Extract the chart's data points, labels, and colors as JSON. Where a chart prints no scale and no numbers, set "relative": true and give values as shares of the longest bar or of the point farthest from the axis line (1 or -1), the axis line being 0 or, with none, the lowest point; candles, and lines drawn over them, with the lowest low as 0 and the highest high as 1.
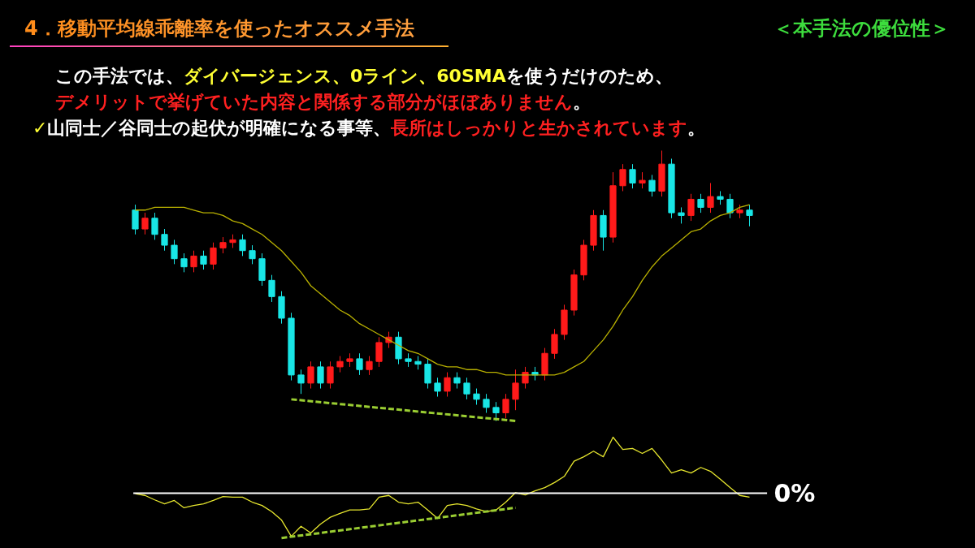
{
  "chart_data": [
    {
      "type": "candlestick",
      "relative": true,
      "title": "4．移動平均線乖離率を使ったオススメ手法",
      "annotations": [
        "＜本手法の優位性＞",
        "この手法では、",
        "ダイバージェンス、0ライン、60SMA",
        "を使うだけのため、",
        "デメリットで挙げていた内容と関係する部分がほぼありません",
        "。",
        "✓",
        "山同士／谷同士の起伏が明確になる事等、",
        "長所はしっかりと生かされています",
        "。"
      ],
      "categories": [
        null,
        null,
        null,
        null,
        null,
        null,
        null,
        null,
        null,
        null,
        null,
        null,
        null,
        null,
        null,
        null,
        null,
        null,
        null,
        null,
        null,
        null,
        null,
        null,
        null,
        null,
        null,
        null,
        null,
        null,
        null,
        null,
        null,
        null,
        null,
        null,
        null,
        null,
        null,
        null,
        null,
        null,
        null,
        null,
        null,
        null,
        null,
        null,
        null,
        null,
        null,
        null,
        null,
        null,
        null,
        null,
        null,
        null,
        null,
        null,
        null,
        null,
        null,
        null
      ],
      "ohlc": [
        [
          0.78,
          0.8,
          0.69,
          0.71
        ],
        [
          0.71,
          0.77,
          0.69,
          0.75
        ],
        [
          0.75,
          0.77,
          0.67,
          0.69
        ],
        [
          0.69,
          0.71,
          0.63,
          0.65
        ],
        [
          0.65,
          0.67,
          0.58,
          0.6
        ],
        [
          0.6,
          0.62,
          0.55,
          0.57
        ],
        [
          0.57,
          0.63,
          0.55,
          0.61
        ],
        [
          0.61,
          0.63,
          0.56,
          0.58
        ],
        [
          0.58,
          0.66,
          0.56,
          0.64
        ],
        [
          0.64,
          0.68,
          0.62,
          0.66
        ],
        [
          0.66,
          0.69,
          0.64,
          0.67
        ],
        [
          0.67,
          0.69,
          0.61,
          0.63
        ],
        [
          0.63,
          0.65,
          0.58,
          0.6
        ],
        [
          0.6,
          0.62,
          0.5,
          0.52
        ],
        [
          0.52,
          0.54,
          0.44,
          0.46
        ],
        [
          0.46,
          0.48,
          0.36,
          0.38
        ],
        [
          0.38,
          0.4,
          0.15,
          0.17
        ],
        [
          0.17,
          0.19,
          0.1,
          0.14
        ],
        [
          0.14,
          0.22,
          0.12,
          0.2
        ],
        [
          0.2,
          0.22,
          0.12,
          0.14
        ],
        [
          0.14,
          0.22,
          0.12,
          0.2
        ],
        [
          0.2,
          0.24,
          0.18,
          0.22
        ],
        [
          0.22,
          0.25,
          0.2,
          0.23
        ],
        [
          0.23,
          0.25,
          0.17,
          0.19
        ],
        [
          0.19,
          0.24,
          0.17,
          0.22
        ],
        [
          0.22,
          0.31,
          0.2,
          0.29
        ],
        [
          0.29,
          0.33,
          0.27,
          0.31
        ],
        [
          0.31,
          0.33,
          0.21,
          0.23
        ],
        [
          0.23,
          0.25,
          0.2,
          0.22
        ],
        [
          0.22,
          0.24,
          0.19,
          0.21
        ],
        [
          0.21,
          0.23,
          0.12,
          0.14
        ],
        [
          0.14,
          0.16,
          0.09,
          0.11
        ],
        [
          0.11,
          0.18,
          0.09,
          0.16
        ],
        [
          0.16,
          0.18,
          0.12,
          0.14
        ],
        [
          0.14,
          0.16,
          0.08,
          0.1
        ],
        [
          0.1,
          0.12,
          0.06,
          0.08
        ],
        [
          0.08,
          0.1,
          0.03,
          0.05
        ],
        [
          0.05,
          0.07,
          0.0,
          0.03
        ],
        [
          0.03,
          0.1,
          0.01,
          0.08
        ],
        [
          0.08,
          0.19,
          0.04,
          0.14
        ],
        [
          0.14,
          0.2,
          0.12,
          0.18
        ],
        [
          0.18,
          0.2,
          0.15,
          0.17
        ],
        [
          0.17,
          0.27,
          0.15,
          0.25
        ],
        [
          0.25,
          0.34,
          0.23,
          0.32
        ],
        [
          0.32,
          0.43,
          0.3,
          0.41
        ],
        [
          0.41,
          0.56,
          0.39,
          0.54
        ],
        [
          0.54,
          0.67,
          0.52,
          0.65
        ],
        [
          0.65,
          0.78,
          0.63,
          0.76
        ],
        [
          0.76,
          0.78,
          0.63,
          0.68
        ],
        [
          0.68,
          0.92,
          0.66,
          0.87
        ],
        [
          0.87,
          0.95,
          0.85,
          0.93
        ],
        [
          0.93,
          0.95,
          0.86,
          0.88
        ],
        [
          0.88,
          0.92,
          0.86,
          0.89
        ],
        [
          0.89,
          0.91,
          0.83,
          0.85
        ],
        [
          0.85,
          1.0,
          0.83,
          0.95
        ],
        [
          0.95,
          0.97,
          0.75,
          0.77
        ],
        [
          0.77,
          0.79,
          0.73,
          0.76
        ],
        [
          0.76,
          0.84,
          0.74,
          0.82
        ],
        [
          0.82,
          0.84,
          0.77,
          0.79
        ],
        [
          0.79,
          0.88,
          0.77,
          0.83
        ],
        [
          0.83,
          0.85,
          0.8,
          0.82
        ],
        [
          0.82,
          0.84,
          0.75,
          0.77
        ],
        [
          0.77,
          0.8,
          0.75,
          0.78
        ],
        [
          0.78,
          0.8,
          0.72,
          0.76
        ]
      ],
      "series": [
        {
          "type": "line",
          "color": "#b8b000",
          "values": [
            0.78,
            0.78,
            0.79,
            0.79,
            0.79,
            0.79,
            0.78,
            0.77,
            0.77,
            0.76,
            0.74,
            0.73,
            0.71,
            0.69,
            0.66,
            0.63,
            0.59,
            0.55,
            0.5,
            0.47,
            0.44,
            0.41,
            0.39,
            0.36,
            0.34,
            0.32,
            0.3,
            0.28,
            0.26,
            0.25,
            0.23,
            0.21,
            0.2,
            0.2,
            0.19,
            0.19,
            0.18,
            0.18,
            0.17,
            0.17,
            0.17,
            0.17,
            0.17,
            0.17,
            0.18,
            0.2,
            0.22,
            0.26,
            0.3,
            0.35,
            0.41,
            0.46,
            0.52,
            0.57,
            0.61,
            0.64,
            0.67,
            0.7,
            0.71,
            0.74,
            0.76,
            0.77,
            0.79,
            0.8
          ]
        },
        {
          "type": "line",
          "color": "#9acd32",
          "line_style": "dashed",
          "values": [
            null,
            null,
            null,
            null,
            null,
            null,
            null,
            null,
            null,
            null,
            null,
            null,
            null,
            null,
            null,
            null,
            0.08,
            null,
            null,
            null,
            null,
            null,
            null,
            null,
            null,
            null,
            null,
            null,
            null,
            null,
            null,
            null,
            null,
            null,
            null,
            null,
            null,
            null,
            null,
            0.0,
            null,
            null,
            null,
            null,
            null,
            null,
            null,
            null,
            null,
            null,
            null,
            null,
            null,
            null,
            null,
            null,
            null,
            null,
            null,
            null,
            null,
            null,
            null,
            null
          ]
        }
      ]
    },
    {
      "type": "line",
      "relative": true,
      "categories": [
        null,
        null,
        null,
        null,
        null,
        null,
        null,
        null,
        null,
        null,
        null,
        null,
        null,
        null,
        null,
        null,
        null,
        null,
        null,
        null,
        null,
        null,
        null,
        null,
        null,
        null,
        null,
        null,
        null,
        null,
        null,
        null,
        null,
        null,
        null,
        null,
        null,
        null,
        null,
        null,
        null,
        null,
        null,
        null,
        null,
        null,
        null,
        null,
        null,
        null,
        null,
        null,
        null,
        null,
        null,
        null,
        null,
        null,
        null,
        null,
        null,
        null,
        null,
        null
      ],
      "series": [
        {
          "color": "#e6e62e",
          "values": [
            -0.01,
            -0.04,
            -0.12,
            -0.19,
            -0.13,
            -0.26,
            -0.22,
            -0.19,
            -0.13,
            -0.06,
            -0.07,
            -0.07,
            -0.16,
            -0.22,
            -0.33,
            -0.48,
            -0.77,
            -0.59,
            -0.71,
            -0.55,
            -0.43,
            -0.36,
            -0.3,
            -0.3,
            -0.28,
            -0.07,
            -0.04,
            -0.16,
            -0.19,
            -0.16,
            -0.3,
            -0.45,
            -0.22,
            -0.19,
            -0.22,
            -0.28,
            -0.33,
            -0.3,
            -0.16,
            0.01,
            -0.03,
            0.04,
            0.1,
            0.19,
            0.3,
            0.57,
            0.65,
            0.75,
            0.65,
            1.0,
            0.78,
            0.8,
            0.71,
            0.8,
            0.59,
            0.36,
            0.42,
            0.36,
            0.46,
            0.39,
            0.25,
            0.1,
            -0.04,
            -0.07
          ]
        },
        {
          "color": "#9acd32",
          "line_style": "dashed",
          "values": [
            null,
            null,
            null,
            null,
            null,
            null,
            null,
            null,
            null,
            null,
            null,
            null,
            null,
            null,
            null,
            -0.8,
            null,
            null,
            null,
            null,
            null,
            null,
            null,
            null,
            null,
            null,
            null,
            null,
            null,
            null,
            null,
            null,
            null,
            null,
            null,
            null,
            null,
            null,
            null,
            -0.26,
            null,
            null,
            null,
            null,
            null,
            null,
            null,
            null,
            null,
            null,
            null,
            null,
            null,
            null,
            null,
            null,
            null,
            null,
            null,
            null,
            null,
            null,
            null,
            null
          ]
        }
      ],
      "ref_lines": [
        {
          "axis": "y",
          "value": 0,
          "label": "0%",
          "color": "#ffffff"
        }
      ]
    }
  ]
}
